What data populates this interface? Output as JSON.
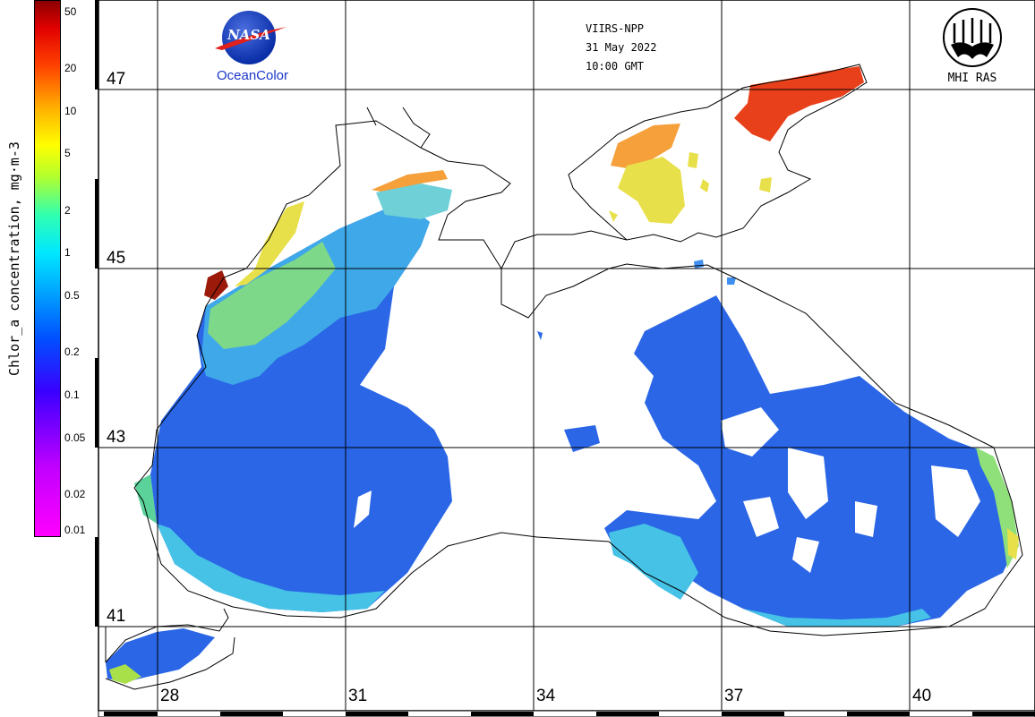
{
  "header": {
    "sensor": "VIIRS-NPP",
    "date": "31 May 2022",
    "time": "10:00 GMT"
  },
  "logos": {
    "nasa_text": "NASA",
    "oceancolor": "OceanColor",
    "mhi": "MHI RAS"
  },
  "colorbar": {
    "label": "Chlor_a concentration, mg·m-3",
    "ticks": [
      "50",
      "20",
      "10",
      "5",
      "2",
      "1",
      "0.5",
      "0.2",
      "0.1",
      "0.05",
      "0.02",
      "0.01"
    ],
    "tick_values": [
      50,
      20,
      10,
      5,
      2,
      1,
      0.5,
      0.2,
      0.1,
      0.05,
      0.02,
      0.01
    ],
    "range": [
      0.01,
      60
    ],
    "scale": "log",
    "colors": [
      "#ff00ff",
      "#8a00ff",
      "#0000ff",
      "#0070ff",
      "#00e0ff",
      "#00ff80",
      "#ffff00",
      "#ff8000",
      "#ff0000",
      "#8b0000"
    ]
  },
  "map": {
    "latitudes": [
      "47",
      "45",
      "43",
      "41"
    ],
    "longitudes": [
      "28",
      "31",
      "34",
      "37",
      "40"
    ],
    "colors": {
      "background": "#ffffff",
      "coast": "#000000",
      "deep": "#2a66e6",
      "mid": "#3f8ff0",
      "shelf": "#35c9e6",
      "coastal": "#8fe07a",
      "high": "#f3e23a",
      "bloom": "#f58a1f",
      "azov": "#e8401a"
    }
  }
}
